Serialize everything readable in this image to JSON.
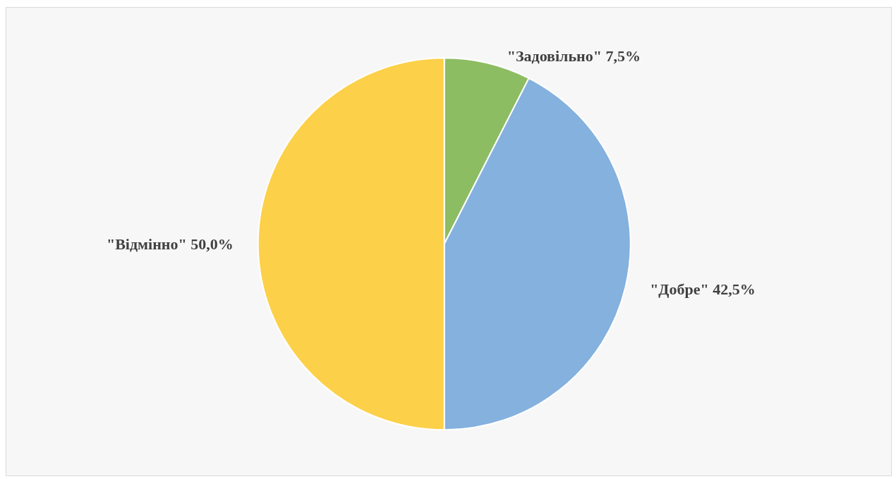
{
  "chart_data": {
    "type": "pie",
    "categories": [
      "\"Задовільно\"",
      "\"Добре\"",
      "\"Відмінно\""
    ],
    "values": [
      7.5,
      42.5,
      50.0
    ],
    "value_labels": [
      "7,5%",
      "42,5%",
      "50,0%"
    ],
    "colors": [
      "#8dbd62",
      "#84b1de",
      "#fdd04a"
    ],
    "legend": false
  }
}
